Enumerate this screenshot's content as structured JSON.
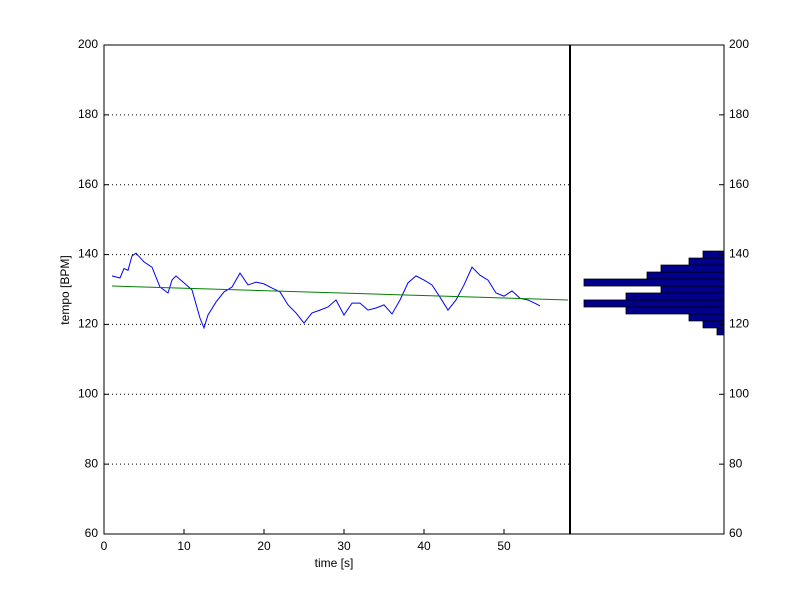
{
  "chart_data": [
    {
      "type": "line",
      "xlabel": "time [s]",
      "ylabel": "tempo [BPM]",
      "xlim": [
        0,
        58.25
      ],
      "ylim": [
        60,
        200
      ],
      "xticks": [
        0,
        10,
        20,
        30,
        40,
        50
      ],
      "yticks": [
        60,
        80,
        100,
        120,
        140,
        160,
        180,
        200
      ],
      "grid": true,
      "series": [
        {
          "color": "#0000ff",
          "x": [
            1,
            2,
            2.5,
            3,
            3.5,
            4,
            5,
            6,
            7,
            8,
            8.5,
            9,
            10,
            11,
            12,
            12.5,
            13,
            14,
            15,
            16,
            17,
            18,
            19,
            20,
            21,
            22,
            23,
            24,
            25,
            26,
            27,
            28,
            29,
            30,
            31,
            32,
            33,
            34,
            35,
            36,
            37,
            38,
            39,
            40,
            41,
            42,
            43,
            44,
            45,
            46,
            47,
            48,
            49,
            50,
            51,
            52,
            53,
            54,
            54.5
          ],
          "values": [
            133.9,
            133.3,
            136,
            135.5,
            139.6,
            140.4,
            137.9,
            136.4,
            130.7,
            129,
            132.7,
            133.9,
            131.9,
            129.9,
            121.8,
            119,
            122.7,
            126.4,
            129.3,
            130.7,
            134.7,
            131.3,
            132.1,
            131.6,
            130.4,
            129.3,
            125.6,
            123.3,
            120.4,
            123.3,
            124.1,
            125,
            127,
            122.7,
            126.1,
            126.1,
            124.1,
            124.7,
            125.6,
            123,
            127,
            131.9,
            133.9,
            132.7,
            131.3,
            127.8,
            124.1,
            127,
            131.3,
            136.4,
            134.1,
            132.7,
            129,
            128.1,
            129.6,
            127.5,
            127,
            125.9,
            125.3
          ]
        },
        {
          "color": "#008000",
          "x": [
            1,
            58
          ],
          "values": [
            131,
            127
          ]
        }
      ]
    },
    {
      "type": "histogram",
      "orientation": "horizontal",
      "bins": [
        117,
        119,
        121,
        123,
        125,
        127,
        129,
        131,
        133,
        135,
        137,
        139,
        141
      ],
      "counts": [
        1,
        3,
        5,
        14,
        20,
        14,
        9,
        20,
        11,
        9,
        5,
        3
      ],
      "color": "#00008b",
      "xlim": [
        22,
        0
      ],
      "ylim": [
        60,
        200
      ],
      "yticks": [
        60,
        80,
        100,
        120,
        140,
        160,
        180,
        200
      ]
    }
  ]
}
